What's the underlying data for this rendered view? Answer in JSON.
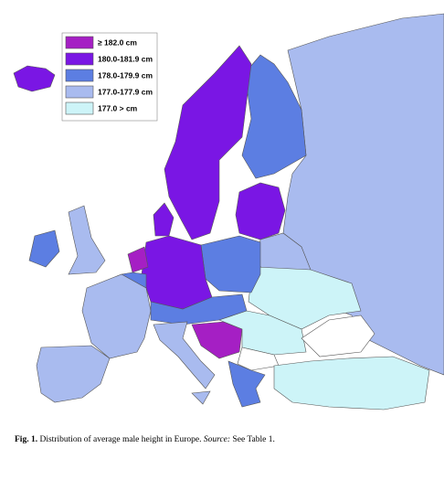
{
  "legend": {
    "items": [
      {
        "label": "≥ 182.0 cm",
        "color": "#a51fc4"
      },
      {
        "label": "180.0-181.9 cm",
        "color": "#7a16e4"
      },
      {
        "label": "178.0-179.9 cm",
        "color": "#5c7ee2"
      },
      {
        "label": "177.0-177.9 cm",
        "color": "#a9bbef"
      },
      {
        "label": "177.0 > cm",
        "color": "#cdf4f8"
      }
    ]
  },
  "caption": {
    "label": "Fig. 1.",
    "text": "Distribution of average male height in Europe.",
    "source_label": "Source:",
    "source_text": "See Table 1."
  }
}
